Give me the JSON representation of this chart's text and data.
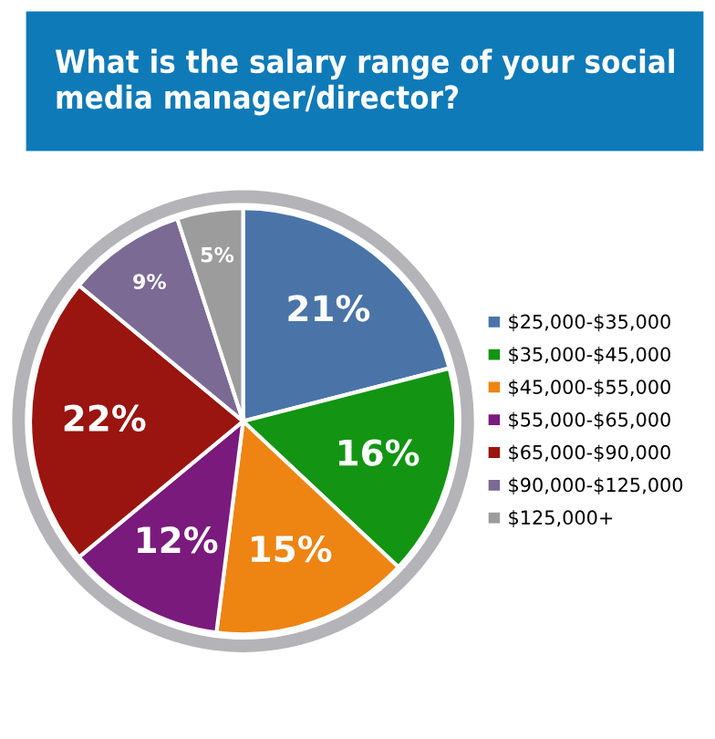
{
  "chart_data": {
    "type": "pie",
    "title": "What is the salary range of your social media manager/director?",
    "categories": [
      "$25,000-$35,000",
      "$35,000-$45,000",
      "$45,000-$55,000",
      "$55,000-$65,000",
      "$65,000-$90,000",
      "$90,000-$125,000",
      "$125,000+"
    ],
    "values": [
      21,
      16,
      15,
      12,
      22,
      9,
      5
    ],
    "colors": [
      "#4a74a8",
      "#139413",
      "#ee8412",
      "#7a1a7c",
      "#9a1410",
      "#7a6a94",
      "#9c9c9c"
    ],
    "value_labels": [
      "21%",
      "16%",
      "15%",
      "12%",
      "22%",
      "9%",
      "5%"
    ],
    "legend": "right"
  }
}
